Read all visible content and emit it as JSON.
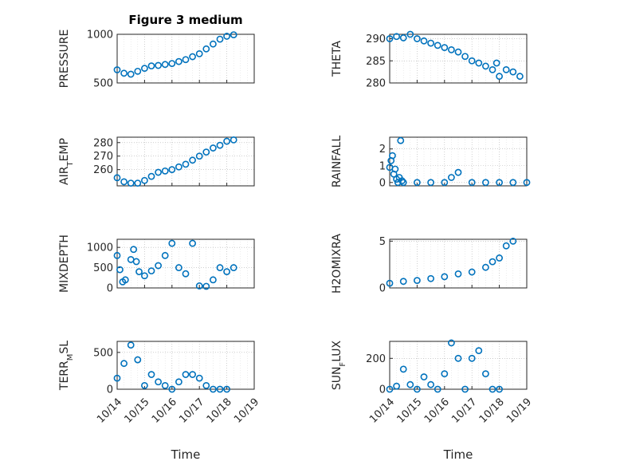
{
  "figure": {
    "title": "Figure 3 medium",
    "background": "#ffffff",
    "marker_color": "#0072BD"
  },
  "chart_data": [
    {
      "type": "scatter",
      "ylabel": "PRESSURE",
      "title": "Figure 3 medium",
      "xlabel": "",
      "ylim": [
        500,
        1000
      ],
      "yticks": [
        500,
        1000
      ],
      "ylabel_parts": [
        {
          "t": "PRESSURE",
          "sub": false
        }
      ],
      "points": [
        [
          0,
          635
        ],
        [
          0.25,
          600
        ],
        [
          0.5,
          590
        ],
        [
          0.75,
          620
        ],
        [
          1,
          650
        ],
        [
          1.25,
          675
        ],
        [
          1.5,
          680
        ],
        [
          1.75,
          690
        ],
        [
          2,
          700
        ],
        [
          2.25,
          720
        ],
        [
          2.5,
          740
        ],
        [
          2.75,
          770
        ],
        [
          3,
          800
        ],
        [
          3.25,
          850
        ],
        [
          3.5,
          900
        ],
        [
          3.75,
          950
        ],
        [
          4,
          980
        ],
        [
          4.25,
          995
        ]
      ]
    },
    {
      "type": "scatter",
      "ylabel": "THETA",
      "xlabel": "",
      "ylim": [
        280,
        291
      ],
      "yticks": [
        280,
        285,
        290
      ],
      "ylabel_parts": [
        {
          "t": "THETA",
          "sub": false
        }
      ],
      "points": [
        [
          0,
          290
        ],
        [
          0.25,
          290.5
        ],
        [
          0.5,
          290.2
        ],
        [
          0.75,
          291
        ],
        [
          1,
          290
        ],
        [
          1.25,
          289.5
        ],
        [
          1.5,
          289
        ],
        [
          1.75,
          288.5
        ],
        [
          2,
          288
        ],
        [
          2.25,
          287.5
        ],
        [
          2.5,
          287
        ],
        [
          2.75,
          286
        ],
        [
          3,
          285
        ],
        [
          3.25,
          284.5
        ],
        [
          3.5,
          283.8
        ],
        [
          3.75,
          283
        ],
        [
          3.9,
          284.5
        ],
        [
          4,
          281.5
        ],
        [
          4.25,
          283
        ],
        [
          4.5,
          282.5
        ],
        [
          4.75,
          281.5
        ]
      ]
    },
    {
      "type": "scatter",
      "ylabel": "AIR_TEMP",
      "xlabel": "",
      "ylim": [
        248,
        284
      ],
      "yticks": [
        260,
        270,
        280
      ],
      "ylabel_parts": [
        {
          "t": "AIR",
          "sub": false
        },
        {
          "t": "T",
          "sub": true
        },
        {
          "t": "EMP",
          "sub": false
        }
      ],
      "points": [
        [
          0,
          254
        ],
        [
          0.25,
          251
        ],
        [
          0.5,
          250
        ],
        [
          0.75,
          250
        ],
        [
          1,
          252
        ],
        [
          1.25,
          255
        ],
        [
          1.5,
          258
        ],
        [
          1.75,
          259
        ],
        [
          2,
          260
        ],
        [
          2.25,
          262
        ],
        [
          2.5,
          264
        ],
        [
          2.75,
          267
        ],
        [
          3,
          270
        ],
        [
          3.25,
          273
        ],
        [
          3.5,
          276
        ],
        [
          3.75,
          278
        ],
        [
          4,
          281
        ],
        [
          4.25,
          282
        ]
      ]
    },
    {
      "type": "scatter",
      "ylabel": "RAINFALL",
      "xlabel": "",
      "ylim": [
        -0.2,
        2.7
      ],
      "yticks": [
        0,
        1,
        2
      ],
      "ylabel_parts": [
        {
          "t": "RAINFALL",
          "sub": false
        }
      ],
      "points": [
        [
          0,
          0.9
        ],
        [
          0.05,
          1.3
        ],
        [
          0.1,
          1.6
        ],
        [
          0.15,
          0.5
        ],
        [
          0.2,
          0.8
        ],
        [
          0.25,
          0.2
        ],
        [
          0.3,
          0
        ],
        [
          0.35,
          0.3
        ],
        [
          0.4,
          2.5
        ],
        [
          0.45,
          0.1
        ],
        [
          0.5,
          0
        ],
        [
          1,
          0
        ],
        [
          1.5,
          0
        ],
        [
          2,
          0
        ],
        [
          2.25,
          0.3
        ],
        [
          2.5,
          0.6
        ],
        [
          3,
          0
        ],
        [
          3.5,
          0
        ],
        [
          4,
          0
        ],
        [
          4.5,
          0
        ],
        [
          5,
          0
        ]
      ]
    },
    {
      "type": "scatter",
      "ylabel": "MIXDEPTH",
      "xlabel": "",
      "ylim": [
        0,
        1200
      ],
      "yticks": [
        0,
        500,
        1000
      ],
      "ylabel_parts": [
        {
          "t": "MIXDEPTH",
          "sub": false
        }
      ],
      "points": [
        [
          0,
          800
        ],
        [
          0.1,
          450
        ],
        [
          0.2,
          150
        ],
        [
          0.3,
          200
        ],
        [
          0.5,
          700
        ],
        [
          0.6,
          950
        ],
        [
          0.7,
          650
        ],
        [
          0.8,
          400
        ],
        [
          1,
          300
        ],
        [
          1.25,
          420
        ],
        [
          1.5,
          550
        ],
        [
          1.75,
          800
        ],
        [
          2,
          1100
        ],
        [
          2.25,
          500
        ],
        [
          2.5,
          350
        ],
        [
          2.75,
          1100
        ],
        [
          3,
          50
        ],
        [
          3.25,
          40
        ],
        [
          3.5,
          200
        ],
        [
          3.75,
          500
        ],
        [
          4,
          400
        ],
        [
          4.25,
          500
        ]
      ]
    },
    {
      "type": "scatter",
      "ylabel": "H2OMIXRA",
      "xlabel": "",
      "ylim": [
        0,
        5.2
      ],
      "yticks": [
        0,
        5
      ],
      "ylabel_parts": [
        {
          "t": "H2OMIXRA",
          "sub": false
        }
      ],
      "points": [
        [
          0,
          0.5
        ],
        [
          0.5,
          0.7
        ],
        [
          1,
          0.8
        ],
        [
          1.5,
          1
        ],
        [
          2,
          1.2
        ],
        [
          2.5,
          1.5
        ],
        [
          3,
          1.7
        ],
        [
          3.5,
          2.2
        ],
        [
          3.75,
          2.8
        ],
        [
          4,
          3.2
        ],
        [
          4.25,
          4.5
        ],
        [
          4.5,
          5
        ]
      ]
    },
    {
      "type": "scatter",
      "ylabel": "TERR_MSL",
      "xlabel": "Time",
      "ylim": [
        0,
        650
      ],
      "yticks": [
        0,
        500
      ],
      "xticklabels": [
        "10/14",
        "10/15",
        "10/16",
        "10/17",
        "10/18",
        "10/19"
      ],
      "ylabel_parts": [
        {
          "t": "TERR",
          "sub": false
        },
        {
          "t": "M",
          "sub": true
        },
        {
          "t": "SL",
          "sub": false
        }
      ],
      "points": [
        [
          0,
          150
        ],
        [
          0.25,
          350
        ],
        [
          0.5,
          600
        ],
        [
          0.75,
          400
        ],
        [
          1,
          50
        ],
        [
          1.25,
          200
        ],
        [
          1.5,
          100
        ],
        [
          1.75,
          50
        ],
        [
          2,
          0
        ],
        [
          2.25,
          100
        ],
        [
          2.5,
          200
        ],
        [
          2.75,
          200
        ],
        [
          3,
          150
        ],
        [
          3.25,
          50
        ],
        [
          3.5,
          0
        ],
        [
          3.75,
          0
        ],
        [
          4,
          0
        ]
      ]
    },
    {
      "type": "scatter",
      "ylabel": "SUN_FLUX",
      "xlabel": "Time",
      "ylim": [
        0,
        310
      ],
      "yticks": [
        0,
        200
      ],
      "xticklabels": [
        "10/14",
        "10/15",
        "10/16",
        "10/17",
        "10/18",
        "10/19"
      ],
      "ylabel_parts": [
        {
          "t": "SUN",
          "sub": false
        },
        {
          "t": "F",
          "sub": true
        },
        {
          "t": "LUX",
          "sub": false
        }
      ],
      "points": [
        [
          0,
          0
        ],
        [
          0.25,
          20
        ],
        [
          0.5,
          130
        ],
        [
          0.75,
          30
        ],
        [
          1,
          0
        ],
        [
          1.25,
          80
        ],
        [
          1.5,
          30
        ],
        [
          1.75,
          0
        ],
        [
          2,
          100
        ],
        [
          2.25,
          300
        ],
        [
          2.5,
          200
        ],
        [
          2.75,
          0
        ],
        [
          3,
          200
        ],
        [
          3.25,
          250
        ],
        [
          3.5,
          100
        ],
        [
          3.75,
          0
        ],
        [
          4,
          0
        ]
      ]
    }
  ]
}
